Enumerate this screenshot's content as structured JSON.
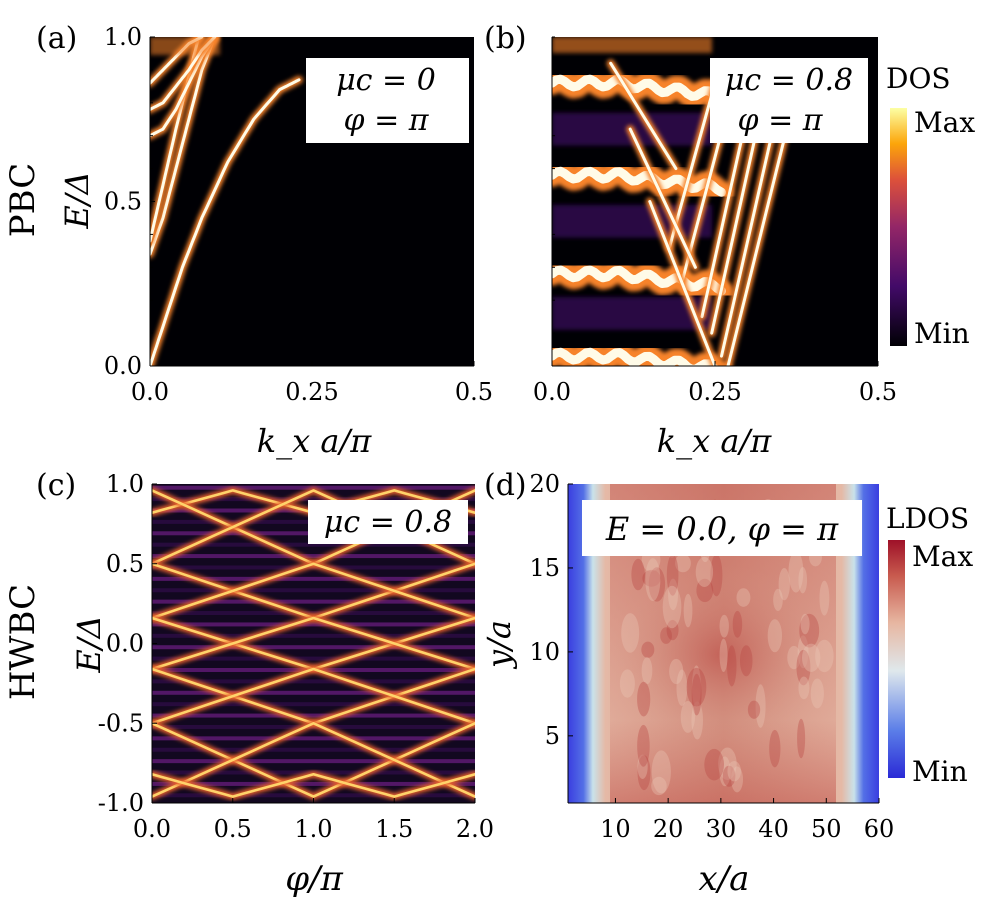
{
  "chart_data": [
    {
      "id": "a",
      "type": "heatmap",
      "panel_label": "(a)",
      "row_label": "PBC",
      "xlabel": "k_x a/π",
      "ylabel": "E/Δ",
      "xlim": [
        0.0,
        0.5
      ],
      "ylim": [
        0.0,
        1.0
      ],
      "xticks": [
        "0.0",
        "0.25",
        "0.5"
      ],
      "xtick_values": [
        0.0,
        0.25,
        0.5
      ],
      "yticks": [
        "0.0",
        "0.5",
        "1.0"
      ],
      "ytick_values": [
        0.0,
        0.5,
        1.0
      ],
      "annotation": [
        "μc = 0",
        "φ = π"
      ],
      "colormap": "inferno",
      "bands": [
        {
          "name": "band-1",
          "x": [
            0.0,
            0.02,
            0.05,
            0.08,
            0.12,
            0.16,
            0.2,
            0.23
          ],
          "y": [
            0.0,
            0.12,
            0.3,
            0.45,
            0.62,
            0.75,
            0.84,
            0.87
          ]
        },
        {
          "name": "band-2",
          "x": [
            0.0,
            0.02,
            0.04,
            0.06,
            0.08,
            0.1
          ],
          "y": [
            0.34,
            0.45,
            0.6,
            0.75,
            0.9,
            1.0
          ]
        },
        {
          "name": "band-3",
          "x": [
            0.0,
            0.02,
            0.04,
            0.06,
            0.075
          ],
          "y": [
            0.38,
            0.55,
            0.72,
            0.88,
            1.0
          ]
        },
        {
          "name": "band-4",
          "x": [
            0.0,
            0.02,
            0.04,
            0.06,
            0.08,
            0.1
          ],
          "y": [
            0.7,
            0.72,
            0.78,
            0.86,
            0.94,
            1.0
          ]
        },
        {
          "name": "band-5",
          "x": [
            0.0,
            0.02,
            0.04,
            0.06,
            0.08,
            0.1
          ],
          "y": [
            0.78,
            0.8,
            0.85,
            0.9,
            0.96,
            1.0
          ]
        },
        {
          "name": "band-6",
          "x": [
            0.0,
            0.02,
            0.04,
            0.06,
            0.08
          ],
          "y": [
            0.86,
            0.9,
            0.94,
            0.98,
            1.0
          ]
        }
      ]
    },
    {
      "id": "b",
      "type": "heatmap",
      "panel_label": "(b)",
      "xlabel": "k_x a/π",
      "xlim": [
        0.0,
        0.5
      ],
      "ylim": [
        0.0,
        1.0
      ],
      "xticks": [
        "0.0",
        "0.25",
        "0.5"
      ],
      "xtick_values": [
        0.0,
        0.25,
        0.5
      ],
      "annotation": [
        "μc = 0.8",
        "φ = π"
      ],
      "colormap": "inferno",
      "colorbar": {
        "title": "DOS",
        "max_label": "Max",
        "min_label": "Min"
      },
      "flat_bands_E": [
        0.03,
        0.28,
        0.58,
        0.86
      ],
      "dispersive_bands": [
        {
          "name": "line-1",
          "x": [
            0.27,
            0.38
          ],
          "y": [
            0.0,
            0.88
          ]
        },
        {
          "name": "line-2",
          "x": [
            0.26,
            0.355
          ],
          "y": [
            0.03,
            0.86
          ]
        },
        {
          "name": "line-3",
          "x": [
            0.245,
            0.33
          ],
          "y": [
            0.1,
            0.86
          ]
        },
        {
          "name": "line-4",
          "x": [
            0.23,
            0.31
          ],
          "y": [
            0.15,
            0.86
          ]
        },
        {
          "name": "line-5",
          "x": [
            0.2,
            0.28
          ],
          "y": [
            0.26,
            0.86
          ]
        },
        {
          "name": "line-6",
          "x": [
            0.18,
            0.25
          ],
          "y": [
            0.36,
            0.86
          ]
        },
        {
          "name": "line-7",
          "x": [
            0.09,
            0.19
          ],
          "y": [
            0.92,
            0.6
          ]
        },
        {
          "name": "line-8",
          "x": [
            0.12,
            0.22
          ],
          "y": [
            0.72,
            0.3
          ]
        },
        {
          "name": "line-9",
          "x": [
            0.15,
            0.25
          ],
          "y": [
            0.5,
            0.0
          ]
        }
      ]
    },
    {
      "id": "c",
      "type": "heatmap",
      "panel_label": "(c)",
      "row_label": "HWBC",
      "xlabel": "φ/π",
      "ylabel": "E/Δ",
      "xlim": [
        0.0,
        2.0
      ],
      "ylim": [
        -1.0,
        1.0
      ],
      "xticks": [
        "0.0",
        "0.5",
        "1.0",
        "1.5",
        "2.0"
      ],
      "xtick_values": [
        0.0,
        0.5,
        1.0,
        1.5,
        2.0
      ],
      "yticks": [
        "-1.0",
        "-0.5",
        "0.0",
        "0.5",
        "1.0"
      ],
      "ytick_values": [
        -1.0,
        -0.5,
        0.0,
        0.5,
        1.0
      ],
      "annotation": [
        "μc = 0.8"
      ],
      "colormap": "inferno",
      "crossing_bands": [
        {
          "name": "zz-1",
          "x": [
            0.0,
            0.5,
            1.0,
            1.5,
            2.0
          ],
          "y": [
            0.82,
            0.96,
            0.82,
            0.96,
            0.82
          ]
        },
        {
          "name": "zz-2",
          "x": [
            0.0,
            1.0,
            2.0
          ],
          "y": [
            0.96,
            0.5,
            0.96
          ]
        },
        {
          "name": "zz-3",
          "x": [
            0.0,
            1.0,
            2.0
          ],
          "y": [
            0.5,
            0.96,
            0.5
          ]
        },
        {
          "name": "zz-4",
          "x": [
            0.0,
            1.0,
            2.0
          ],
          "y": [
            0.5,
            0.16,
            0.5
          ]
        },
        {
          "name": "zz-5",
          "x": [
            0.0,
            1.0,
            2.0
          ],
          "y": [
            0.16,
            0.5,
            0.16
          ]
        },
        {
          "name": "zz-6",
          "x": [
            0.0,
            1.0,
            2.0
          ],
          "y": [
            0.16,
            -0.16,
            0.16
          ]
        },
        {
          "name": "zz-7",
          "x": [
            0.0,
            1.0,
            2.0
          ],
          "y": [
            -0.16,
            0.16,
            -0.16
          ]
        },
        {
          "name": "zz-8",
          "x": [
            0.0,
            1.0,
            2.0
          ],
          "y": [
            -0.16,
            -0.5,
            -0.16
          ]
        },
        {
          "name": "zz-9",
          "x": [
            0.0,
            1.0,
            2.0
          ],
          "y": [
            -0.5,
            -0.16,
            -0.5
          ]
        },
        {
          "name": "zz-10",
          "x": [
            0.0,
            1.0,
            2.0
          ],
          "y": [
            -0.5,
            -0.96,
            -0.5
          ]
        },
        {
          "name": "zz-11",
          "x": [
            0.0,
            1.0,
            2.0
          ],
          "y": [
            -0.96,
            -0.5,
            -0.96
          ]
        },
        {
          "name": "zz-12",
          "x": [
            0.0,
            0.5,
            1.0,
            1.5,
            2.0
          ],
          "y": [
            -0.82,
            -0.96,
            -0.82,
            -0.96,
            -0.82
          ]
        }
      ]
    },
    {
      "id": "d",
      "type": "heatmap",
      "panel_label": "(d)",
      "xlabel": "x/a",
      "ylabel": "y/a",
      "xlim": [
        1,
        60
      ],
      "ylim": [
        1,
        20
      ],
      "xticks": [
        "10",
        "20",
        "30",
        "40",
        "50",
        "60"
      ],
      "xtick_values": [
        10,
        20,
        30,
        40,
        50,
        60
      ],
      "yticks": [
        "5",
        "10",
        "15",
        "20"
      ],
      "ytick_values": [
        5,
        10,
        15,
        20
      ],
      "annotation": [
        "E = 0.0, φ = π"
      ],
      "colormap": "coolwarm",
      "colorbar": {
        "title": "LDOS",
        "max_label": "Max",
        "min_label": "Min"
      }
    }
  ]
}
